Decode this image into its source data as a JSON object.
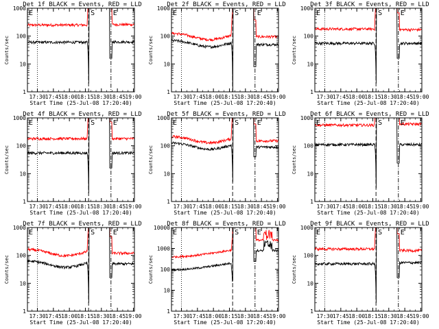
{
  "colors": {
    "events": "#000000",
    "lld": "#ff0000",
    "background": "#ffffff",
    "axis": "#000000"
  },
  "shared": {
    "ylabel": "Counts/sec",
    "xlabel": "Start Time (25-Jul-08 17:20:40)",
    "x_ticks": [
      "17:30",
      "17:45",
      "18:00",
      "18:15",
      "18:30",
      "18:45",
      "19:00"
    ],
    "marker_labels": {
      "start": "S",
      "end": "E"
    },
    "legend_in_title": "BLACK = Events, RED = LLD"
  },
  "chart_data": [
    {
      "type": "line",
      "title": "Det 1f BLACK = Events, RED = LLD",
      "xlabel": "Start Time (25-Jul-08 17:20:40)",
      "ylabel": "Counts/sec",
      "xlim": [
        "17:20:40",
        "19:01"
      ],
      "ylim": [
        1,
        1000
      ],
      "y_scale": "log",
      "y_ticks": [
        "1",
        "10",
        "100",
        "1000"
      ],
      "grid": false,
      "vlines": [
        {
          "time": "17:30",
          "style": "dotted"
        },
        {
          "time": "18:18",
          "style": "dashed",
          "label": "S"
        },
        {
          "time": "18:39",
          "style": "dash-dot",
          "label": "E"
        }
      ],
      "events_base": 60,
      "lld_base": 250,
      "events_trend": "flat",
      "lld_trend": "flat",
      "spike_dip_min": 2,
      "post_events": 62,
      "post_lld": 260,
      "secondary_spike": false,
      "series": [
        {
          "name": "Events",
          "color": "#000000",
          "x": [
            "17:20",
            "17:30",
            "17:45",
            "18:00",
            "18:15",
            "18:18",
            "18:39",
            "18:45",
            "19:00"
          ],
          "y": [
            60,
            62,
            60,
            58,
            58,
            2,
            30,
            62,
            60
          ]
        },
        {
          "name": "LLD",
          "color": "#ff0000",
          "x": [
            "17:20",
            "17:30",
            "17:45",
            "18:00",
            "18:15",
            "18:18",
            "18:39",
            "18:45",
            "19:00"
          ],
          "y": [
            250,
            240,
            230,
            240,
            260,
            1000,
            1000,
            260,
            255
          ]
        }
      ]
    },
    {
      "type": "line",
      "title": "Det 2f BLACK = Events, RED = LLD",
      "xlabel": "Start Time (25-Jul-08 17:20:40)",
      "ylabel": "Counts/sec",
      "xlim": [
        "17:20:40",
        "19:01"
      ],
      "ylim": [
        1,
        1000
      ],
      "y_scale": "log",
      "y_ticks": [
        "1",
        "10",
        "100",
        "1000"
      ],
      "grid": false,
      "vlines": [
        {
          "time": "17:30",
          "style": "dotted"
        },
        {
          "time": "18:18",
          "style": "dashed",
          "label": "S"
        },
        {
          "time": "18:39",
          "style": "dash-dot",
          "label": "E"
        }
      ],
      "events_base": 55,
      "lld_base": 100,
      "events_trend": "dip",
      "lld_trend": "dip",
      "spike_dip_min": 1,
      "post_events": 50,
      "post_lld": 95,
      "secondary_spike": false,
      "series": [
        {
          "name": "Events",
          "color": "#000000",
          "x": [
            "17:20",
            "17:30",
            "17:45",
            "18:00",
            "18:15",
            "18:18",
            "18:39",
            "18:45",
            "19:00"
          ],
          "y": [
            55,
            65,
            45,
            45,
            60,
            1,
            20,
            50,
            45
          ]
        },
        {
          "name": "LLD",
          "color": "#ff0000",
          "x": [
            "17:20",
            "17:30",
            "17:45",
            "18:00",
            "18:15",
            "18:18",
            "18:39",
            "18:45",
            "19:00"
          ],
          "y": [
            100,
            110,
            85,
            80,
            100,
            1000,
            1000,
            95,
            90
          ]
        }
      ]
    },
    {
      "type": "line",
      "title": "Det 3f BLACK = Events, RED = LLD",
      "xlabel": "Start Time (25-Jul-08 17:20:40)",
      "ylabel": "Counts/sec",
      "xlim": [
        "17:20:40",
        "19:01"
      ],
      "ylim": [
        1,
        1000
      ],
      "y_scale": "log",
      "y_ticks": [
        "1",
        "10",
        "100",
        "1000"
      ],
      "grid": false,
      "vlines": [
        {
          "time": "17:30",
          "style": "dotted"
        },
        {
          "time": "18:18",
          "style": "dashed",
          "label": "S"
        },
        {
          "time": "18:39",
          "style": "dash-dot",
          "label": "E"
        }
      ],
      "events_base": 55,
      "lld_base": 180,
      "events_trend": "flat",
      "lld_trend": "flat",
      "spike_dip_min": 2,
      "post_events": 55,
      "post_lld": 170,
      "secondary_spike": false,
      "series": [
        {
          "name": "Events",
          "color": "#000000",
          "x": [
            "17:20",
            "17:30",
            "17:45",
            "18:00",
            "18:15",
            "18:18",
            "18:39",
            "18:45",
            "19:00"
          ],
          "y": [
            55,
            55,
            55,
            55,
            55,
            2,
            30,
            55,
            55
          ]
        },
        {
          "name": "LLD",
          "color": "#ff0000",
          "x": [
            "17:20",
            "17:30",
            "17:45",
            "18:00",
            "18:15",
            "18:18",
            "18:39",
            "18:45",
            "19:00"
          ],
          "y": [
            180,
            185,
            180,
            175,
            180,
            1000,
            1000,
            170,
            165
          ]
        }
      ]
    },
    {
      "type": "line",
      "title": "Det 4f BLACK = Events, RED = LLD",
      "xlabel": "Start Time (25-Jul-08 17:20:40)",
      "ylabel": "Counts/sec",
      "xlim": [
        "17:20:40",
        "19:01"
      ],
      "ylim": [
        1,
        1000
      ],
      "y_scale": "log",
      "y_ticks": [
        "1",
        "10",
        "100",
        "1000"
      ],
      "grid": false,
      "vlines": [
        {
          "time": "17:30",
          "style": "dotted"
        },
        {
          "time": "18:18",
          "style": "dashed",
          "label": "S"
        },
        {
          "time": "18:39",
          "style": "dash-dot",
          "label": "E"
        }
      ],
      "events_base": 55,
      "lld_base": 180,
      "events_trend": "flat",
      "lld_trend": "flat",
      "spike_dip_min": 2,
      "post_events": 55,
      "post_lld": 180,
      "secondary_spike": false,
      "series": [
        {
          "name": "Events",
          "color": "#000000",
          "x": [
            "17:20",
            "17:30",
            "17:45",
            "18:00",
            "18:15",
            "18:18",
            "18:39",
            "18:45",
            "19:00"
          ],
          "y": [
            55,
            50,
            45,
            55,
            60,
            2,
            30,
            55,
            50
          ]
        },
        {
          "name": "LLD",
          "color": "#ff0000",
          "x": [
            "17:20",
            "17:30",
            "17:45",
            "18:00",
            "18:15",
            "18:18",
            "18:39",
            "18:45",
            "19:00"
          ],
          "y": [
            180,
            170,
            160,
            180,
            200,
            1000,
            1000,
            180,
            170
          ]
        }
      ]
    },
    {
      "type": "line",
      "title": "Det 5f BLACK = Events, RED = LLD",
      "xlabel": "Start Time (25-Jul-08 17:20:40)",
      "ylabel": "Counts/sec",
      "xlim": [
        "17:20:40",
        "19:01"
      ],
      "ylim": [
        1,
        1000
      ],
      "y_scale": "log",
      "y_ticks": [
        "1",
        "10",
        "100",
        "1000"
      ],
      "grid": false,
      "vlines": [
        {
          "time": "17:30",
          "style": "dotted"
        },
        {
          "time": "18:18",
          "style": "dashed",
          "label": "S"
        },
        {
          "time": "18:39",
          "style": "dash-dot",
          "label": "E"
        }
      ],
      "events_base": 100,
      "lld_base": 170,
      "events_trend": "dip",
      "lld_trend": "dip",
      "spike_dip_min": 5,
      "post_events": 90,
      "post_lld": 150,
      "secondary_spike": false,
      "series": [
        {
          "name": "Events",
          "color": "#000000",
          "x": [
            "17:20",
            "17:30",
            "17:45",
            "18:00",
            "18:15",
            "18:18",
            "18:39",
            "18:45",
            "19:00"
          ],
          "y": [
            100,
            115,
            95,
            85,
            100,
            5,
            20,
            90,
            85
          ]
        },
        {
          "name": "LLD",
          "color": "#ff0000",
          "x": [
            "17:20",
            "17:30",
            "17:45",
            "18:00",
            "18:15",
            "18:18",
            "18:39",
            "18:45",
            "19:00"
          ],
          "y": [
            170,
            190,
            160,
            150,
            175,
            1000,
            1000,
            150,
            145
          ]
        }
      ]
    },
    {
      "type": "line",
      "title": "Det 6f BLACK = Events, RED = LLD",
      "xlabel": "Start Time (25-Jul-08 17:20:40)",
      "ylabel": "Counts/sec",
      "xlim": [
        "17:20:40",
        "19:01"
      ],
      "ylim": [
        1,
        1000
      ],
      "y_scale": "log",
      "y_ticks": [
        "1",
        "10",
        "100",
        "1000"
      ],
      "grid": false,
      "vlines": [
        {
          "time": "17:30",
          "style": "dotted"
        },
        {
          "time": "18:18",
          "style": "dashed",
          "label": "S"
        },
        {
          "time": "18:39",
          "style": "dash-dot",
          "label": "E"
        }
      ],
      "events_base": 110,
      "lld_base": 550,
      "events_trend": "flat",
      "lld_trend": "flat",
      "spike_dip_min": 3,
      "post_events": 110,
      "post_lld": 600,
      "secondary_spike": false,
      "series": [
        {
          "name": "Events",
          "color": "#000000",
          "x": [
            "17:20",
            "17:30",
            "17:45",
            "18:00",
            "18:15",
            "18:18",
            "18:39",
            "18:45",
            "19:00"
          ],
          "y": [
            110,
            120,
            105,
            95,
            100,
            3,
            20,
            110,
            105
          ]
        },
        {
          "name": "LLD",
          "color": "#ff0000",
          "x": [
            "17:20",
            "17:30",
            "17:45",
            "18:00",
            "18:15",
            "18:18",
            "18:39",
            "18:45",
            "19:00"
          ],
          "y": [
            550,
            560,
            520,
            500,
            520,
            1000,
            1000,
            600,
            580
          ]
        }
      ]
    },
    {
      "type": "line",
      "title": "Det 7f BLACK = Events, RED = LLD",
      "xlabel": "Start Time (25-Jul-08 17:20:40)",
      "ylabel": "Counts/sec",
      "xlim": [
        "17:20:40",
        "19:01"
      ],
      "ylim": [
        1,
        1000
      ],
      "y_scale": "log",
      "y_ticks": [
        "1",
        "10",
        "100",
        "1000"
      ],
      "grid": false,
      "vlines": [
        {
          "time": "17:30",
          "style": "dotted"
        },
        {
          "time": "18:18",
          "style": "dashed",
          "label": "S"
        },
        {
          "time": "18:39",
          "style": "dash-dot",
          "label": "E"
        }
      ],
      "events_base": 50,
      "lld_base": 130,
      "events_trend": "dip",
      "lld_trend": "dip",
      "spike_dip_min": 2,
      "post_events": 50,
      "post_lld": 120,
      "secondary_spike": false,
      "series": [
        {
          "name": "Events",
          "color": "#000000",
          "x": [
            "17:20",
            "17:30",
            "17:45",
            "18:00",
            "18:15",
            "18:18",
            "18:39",
            "18:45",
            "19:00"
          ],
          "y": [
            50,
            60,
            50,
            40,
            45,
            2,
            30,
            50,
            45
          ]
        },
        {
          "name": "LLD",
          "color": "#ff0000",
          "x": [
            "17:20",
            "17:30",
            "17:45",
            "18:00",
            "18:15",
            "18:18",
            "18:39",
            "18:45",
            "19:00"
          ],
          "y": [
            130,
            150,
            120,
            100,
            120,
            1000,
            1000,
            120,
            110
          ]
        }
      ]
    },
    {
      "type": "line",
      "title": "Det 8f BLACK = Events, RED = LLD",
      "xlabel": "Start Time (25-Jul-08 17:20:40)",
      "ylabel": "Counts/sec",
      "xlim": [
        "17:20:40",
        "19:01"
      ],
      "ylim": [
        1,
        10000
      ],
      "y_scale": "log",
      "y_ticks": [
        "1",
        "10",
        "100",
        "1000",
        "10000"
      ],
      "grid": false,
      "vlines": [
        {
          "time": "17:30",
          "style": "dotted"
        },
        {
          "time": "18:18",
          "style": "dashed",
          "label": "S"
        },
        {
          "time": "18:39",
          "style": "dash-dot",
          "label": "E"
        }
      ],
      "events_base": 120,
      "lld_base": 500,
      "events_trend": "rise",
      "lld_trend": "rise",
      "spike_dip_min": 30,
      "post_events": 800,
      "post_lld": 2500,
      "secondary_spike": true,
      "series": [
        {
          "name": "Events",
          "color": "#000000",
          "x": [
            "17:20",
            "17:30",
            "17:45",
            "18:00",
            "18:15",
            "18:18",
            "18:39",
            "18:45",
            "19:00"
          ],
          "y": [
            120,
            90,
            110,
            180,
            300,
            30,
            800,
            600,
            500
          ]
        },
        {
          "name": "LLD",
          "color": "#ff0000",
          "x": [
            "17:20",
            "17:30",
            "17:45",
            "18:00",
            "18:15",
            "18:18",
            "18:39",
            "18:45",
            "19:00"
          ],
          "y": [
            500,
            400,
            500,
            800,
            1500,
            10000,
            3000,
            2500,
            2000
          ]
        }
      ]
    },
    {
      "type": "line",
      "title": "Det 9f BLACK = Events, RED = LLD",
      "xlabel": "Start Time (25-Jul-08 17:20:40)",
      "ylabel": "Counts/sec",
      "xlim": [
        "17:20:40",
        "19:01"
      ],
      "ylim": [
        1,
        1000
      ],
      "y_scale": "log",
      "y_ticks": [
        "1",
        "10",
        "100",
        "1000"
      ],
      "grid": false,
      "vlines": [
        {
          "time": "17:30",
          "style": "dotted"
        },
        {
          "time": "18:18",
          "style": "dashed",
          "label": "S"
        },
        {
          "time": "18:39",
          "style": "dash-dot",
          "label": "E"
        }
      ],
      "events_base": 50,
      "lld_base": 170,
      "events_trend": "flat",
      "lld_trend": "flat",
      "spike_dip_min": 2,
      "post_events": 55,
      "post_lld": 150,
      "secondary_spike": false,
      "series": [
        {
          "name": "Events",
          "color": "#000000",
          "x": [
            "17:20",
            "17:30",
            "17:45",
            "18:00",
            "18:15",
            "18:18",
            "18:39",
            "18:45",
            "19:00"
          ],
          "y": [
            50,
            55,
            50,
            48,
            50,
            2,
            30,
            55,
            50
          ]
        },
        {
          "name": "LLD",
          "color": "#ff0000",
          "x": [
            "17:20",
            "17:30",
            "17:45",
            "18:00",
            "18:15",
            "18:18",
            "18:39",
            "18:45",
            "19:00"
          ],
          "y": [
            170,
            180,
            170,
            165,
            175,
            1000,
            1000,
            150,
            145
          ]
        }
      ]
    }
  ]
}
